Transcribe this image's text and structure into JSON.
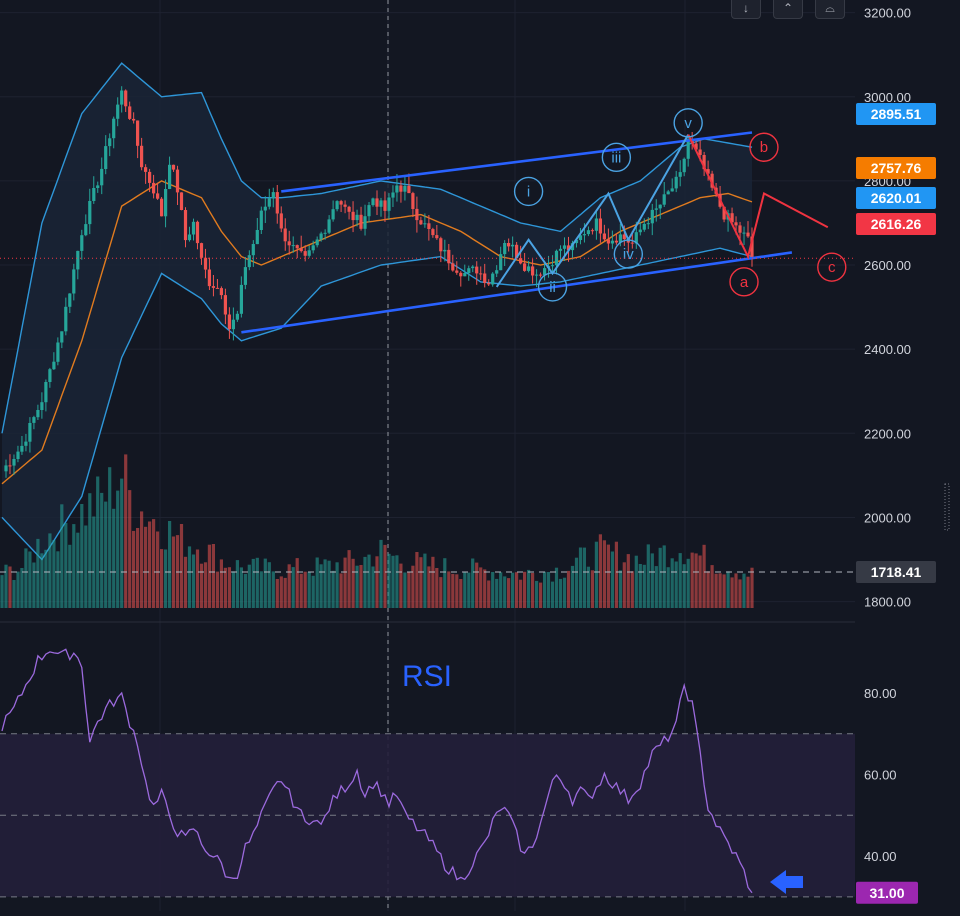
{
  "toolbar": {
    "buttons": [
      {
        "name": "scroll-down-button",
        "glyph": "↓"
      },
      {
        "name": "scroll-up-button",
        "glyph": "⌃"
      },
      {
        "name": "maximize-button",
        "glyph": "⌓"
      }
    ]
  },
  "colors": {
    "background": "#131722",
    "up_candle": "#26a69a",
    "down_candle": "#ef5350",
    "bollinger": "#2e96d8",
    "bollinger_fill": "#1a2536",
    "basis": "#e07b1f",
    "channel": "#2962ff",
    "wave_blue": "#4ba3e3",
    "wave_red": "#ef3340",
    "rsi_line": "#9c6ade",
    "rsi_band": "#241f3a",
    "rsi_label": "#2962ff",
    "grid": "#1e2230",
    "axis_text": "#d1d4dc"
  },
  "chart_data": [
    {
      "type": "candlestick",
      "panel": "price",
      "y_axis": {
        "ticks": [
          3200,
          3000,
          2800,
          2600,
          2400,
          2200,
          2000,
          1800
        ],
        "tick_labels": [
          "3200.00",
          "3000.00",
          "2800.00",
          "2600.00",
          "2400.00",
          "2200.00",
          "2000.00",
          "1800.00"
        ],
        "range": [
          1780,
          3230
        ]
      },
      "price_labels": [
        {
          "value": 2895.51,
          "text": "2895.51",
          "color": "#2196f3"
        },
        {
          "value": 2757.76,
          "text": "2757.76",
          "color": "#f57c00"
        },
        {
          "value": 2620.01,
          "text": "2620.01",
          "color": "#2196f3"
        },
        {
          "value": 2616.26,
          "text": "2616.26",
          "color": "#f23645"
        },
        {
          "value": 1718.41,
          "text": "1718.41",
          "color": "#363a45"
        }
      ],
      "close_keypoints": [
        [
          0,
          2110
        ],
        [
          5,
          2170
        ],
        [
          10,
          2280
        ],
        [
          15,
          2450
        ],
        [
          20,
          2680
        ],
        [
          25,
          2830
        ],
        [
          28,
          2950
        ],
        [
          30,
          3010
        ],
        [
          33,
          2930
        ],
        [
          35,
          2840
        ],
        [
          38,
          2780
        ],
        [
          40,
          2720
        ],
        [
          42,
          2850
        ],
        [
          44,
          2780
        ],
        [
          46,
          2660
        ],
        [
          48,
          2700
        ],
        [
          50,
          2610
        ],
        [
          52,
          2560
        ],
        [
          55,
          2540
        ],
        [
          57,
          2450
        ],
        [
          59,
          2480
        ],
        [
          61,
          2600
        ],
        [
          63,
          2650
        ],
        [
          65,
          2720
        ],
        [
          68,
          2780
        ],
        [
          70,
          2680
        ],
        [
          73,
          2640
        ],
        [
          76,
          2610
        ],
        [
          78,
          2640
        ],
        [
          81,
          2690
        ],
        [
          84,
          2760
        ],
        [
          87,
          2720
        ],
        [
          90,
          2700
        ],
        [
          93,
          2760
        ],
        [
          96,
          2730
        ],
        [
          99,
          2790
        ],
        [
          101,
          2780
        ],
        [
          104,
          2720
        ],
        [
          107,
          2680
        ],
        [
          110,
          2640
        ],
        [
          113,
          2600
        ],
        [
          116,
          2580
        ],
        [
          119,
          2590
        ],
        [
          122,
          2560
        ],
        [
          124,
          2600
        ],
        [
          126,
          2660
        ],
        [
          128,
          2640
        ],
        [
          131,
          2600
        ],
        [
          134,
          2580
        ],
        [
          137,
          2600
        ],
        [
          140,
          2640
        ],
        [
          143,
          2640
        ],
        [
          146,
          2680
        ],
        [
          149,
          2700
        ],
        [
          152,
          2660
        ],
        [
          155,
          2670
        ],
        [
          158,
          2650
        ],
        [
          161,
          2700
        ],
        [
          164,
          2730
        ],
        [
          167,
          2770
        ],
        [
          170,
          2810
        ],
        [
          172,
          2900
        ],
        [
          175,
          2850
        ],
        [
          178,
          2780
        ],
        [
          181,
          2720
        ],
        [
          184,
          2690
        ],
        [
          187,
          2660
        ],
        [
          188,
          2616
        ]
      ],
      "bollinger": {
        "upper": [
          [
            0,
            2200
          ],
          [
            10,
            2700
          ],
          [
            20,
            2960
          ],
          [
            30,
            3080
          ],
          [
            40,
            3000
          ],
          [
            50,
            3010
          ],
          [
            55,
            2900
          ],
          [
            60,
            2800
          ],
          [
            65,
            2760
          ],
          [
            70,
            2760
          ],
          [
            80,
            2770
          ],
          [
            95,
            2800
          ],
          [
            110,
            2780
          ],
          [
            120,
            2740
          ],
          [
            130,
            2700
          ],
          [
            140,
            2680
          ],
          [
            150,
            2760
          ],
          [
            160,
            2800
          ],
          [
            170,
            2880
          ],
          [
            176,
            2900
          ],
          [
            182,
            2890
          ],
          [
            188,
            2880
          ]
        ],
        "basis": [
          [
            0,
            2080
          ],
          [
            10,
            2160
          ],
          [
            20,
            2420
          ],
          [
            30,
            2740
          ],
          [
            40,
            2800
          ],
          [
            50,
            2760
          ],
          [
            55,
            2680
          ],
          [
            60,
            2620
          ],
          [
            65,
            2600
          ],
          [
            75,
            2640
          ],
          [
            90,
            2700
          ],
          [
            105,
            2720
          ],
          [
            115,
            2680
          ],
          [
            125,
            2620
          ],
          [
            135,
            2600
          ],
          [
            145,
            2620
          ],
          [
            155,
            2680
          ],
          [
            165,
            2720
          ],
          [
            175,
            2760
          ],
          [
            182,
            2770
          ],
          [
            188,
            2750
          ]
        ],
        "lower": [
          [
            0,
            2000
          ],
          [
            10,
            1900
          ],
          [
            20,
            2050
          ],
          [
            30,
            2380
          ],
          [
            40,
            2580
          ],
          [
            50,
            2520
          ],
          [
            55,
            2460
          ],
          [
            60,
            2420
          ],
          [
            70,
            2450
          ],
          [
            80,
            2550
          ],
          [
            95,
            2600
          ],
          [
            110,
            2620
          ],
          [
            120,
            2560
          ],
          [
            130,
            2550
          ],
          [
            140,
            2560
          ],
          [
            150,
            2580
          ],
          [
            160,
            2600
          ],
          [
            170,
            2620
          ],
          [
            180,
            2640
          ],
          [
            188,
            2620
          ]
        ]
      },
      "channel": {
        "upper": [
          [
            70,
            2775
          ],
          [
            188,
            2915
          ]
        ],
        "lower": [
          [
            60,
            2440
          ],
          [
            198,
            2630
          ]
        ]
      },
      "elliott_waves": {
        "impulse": [
          {
            "label": "i",
            "x": 132,
            "value": 2775
          },
          {
            "label": "ii",
            "x": 138,
            "value": 2548
          },
          {
            "label": "iii",
            "x": 154,
            "value": 2856
          },
          {
            "label": "iv",
            "x": 157,
            "value": 2626
          },
          {
            "label": "v",
            "x": 172,
            "value": 2938
          }
        ],
        "impulse_path": [
          [
            124,
            2548
          ],
          [
            132,
            2660
          ],
          [
            138,
            2580
          ],
          [
            152,
            2770
          ],
          [
            157,
            2660
          ],
          [
            172,
            2910
          ]
        ],
        "corrective": [
          {
            "label": "a",
            "x": 186,
            "value": 2560
          },
          {
            "label": "b",
            "x": 191,
            "value": 2880
          },
          {
            "label": "c",
            "x": 208,
            "value": 2595
          }
        ],
        "corrective_path": [
          [
            172,
            2910
          ],
          [
            187,
            2620
          ],
          [
            191,
            2770
          ],
          [
            207,
            2690
          ]
        ]
      }
    },
    {
      "type": "bar",
      "panel": "volume",
      "note": "relative volume level 0-1",
      "levels": [
        [
          0,
          0.25
        ],
        [
          5,
          0.3
        ],
        [
          10,
          0.5
        ],
        [
          15,
          0.6
        ],
        [
          20,
          0.7
        ],
        [
          25,
          0.8
        ],
        [
          28,
          0.9
        ],
        [
          30,
          1.0
        ],
        [
          33,
          0.75
        ],
        [
          36,
          0.7
        ],
        [
          40,
          0.6
        ],
        [
          45,
          0.5
        ],
        [
          50,
          0.45
        ],
        [
          55,
          0.35
        ],
        [
          60,
          0.3
        ],
        [
          70,
          0.28
        ],
        [
          80,
          0.3
        ],
        [
          90,
          0.35
        ],
        [
          95,
          0.42
        ],
        [
          100,
          0.35
        ],
        [
          110,
          0.3
        ],
        [
          120,
          0.28
        ],
        [
          130,
          0.25
        ],
        [
          140,
          0.28
        ],
        [
          150,
          0.42
        ],
        [
          160,
          0.35
        ],
        [
          170,
          0.45
        ],
        [
          175,
          0.38
        ],
        [
          182,
          0.3
        ],
        [
          188,
          0.25
        ]
      ]
    },
    {
      "type": "line",
      "panel": "rsi",
      "label": "RSI",
      "y_axis": {
        "ticks": [
          80,
          60,
          40
        ],
        "tick_labels": [
          "80.00",
          "60.00",
          "40.00"
        ],
        "range": [
          28,
          93
        ]
      },
      "bands": {
        "upper": 70,
        "middle": 50,
        "lower": 30
      },
      "current": {
        "value": 31.0,
        "text": "31.00"
      },
      "values": [
        [
          0,
          72
        ],
        [
          3,
          76
        ],
        [
          6,
          82
        ],
        [
          9,
          88
        ],
        [
          12,
          91
        ],
        [
          15,
          89
        ],
        [
          18,
          90
        ],
        [
          20,
          87
        ],
        [
          22,
          68
        ],
        [
          24,
          73
        ],
        [
          26,
          76
        ],
        [
          28,
          78
        ],
        [
          30,
          79
        ],
        [
          32,
          73
        ],
        [
          34,
          68
        ],
        [
          36,
          58
        ],
        [
          38,
          52
        ],
        [
          40,
          55
        ],
        [
          42,
          50
        ],
        [
          44,
          46
        ],
        [
          46,
          44
        ],
        [
          48,
          47
        ],
        [
          50,
          43
        ],
        [
          53,
          40
        ],
        [
          55,
          38
        ],
        [
          57,
          34
        ],
        [
          59,
          36
        ],
        [
          61,
          42
        ],
        [
          63,
          45
        ],
        [
          66,
          52
        ],
        [
          68,
          56
        ],
        [
          70,
          59
        ],
        [
          72,
          55
        ],
        [
          74,
          52
        ],
        [
          76,
          48
        ],
        [
          78,
          50
        ],
        [
          80,
          47
        ],
        [
          82,
          52
        ],
        [
          84,
          55
        ],
        [
          87,
          58
        ],
        [
          89,
          61
        ],
        [
          91,
          55
        ],
        [
          93,
          58
        ],
        [
          95,
          56
        ],
        [
          97,
          53
        ],
        [
          99,
          55
        ],
        [
          101,
          50
        ],
        [
          103,
          48
        ],
        [
          105,
          46
        ],
        [
          107,
          44
        ],
        [
          109,
          41
        ],
        [
          111,
          38
        ],
        [
          113,
          36
        ],
        [
          115,
          34
        ],
        [
          117,
          37
        ],
        [
          119,
          40
        ],
        [
          121,
          43
        ],
        [
          123,
          48
        ],
        [
          125,
          52
        ],
        [
          127,
          50
        ],
        [
          129,
          45
        ],
        [
          131,
          40
        ],
        [
          133,
          43
        ],
        [
          135,
          48
        ],
        [
          137,
          55
        ],
        [
          139,
          60
        ],
        [
          141,
          58
        ],
        [
          143,
          54
        ],
        [
          145,
          56
        ],
        [
          147,
          54
        ],
        [
          149,
          57
        ],
        [
          151,
          60
        ],
        [
          153,
          58
        ],
        [
          155,
          56
        ],
        [
          157,
          54
        ],
        [
          160,
          58
        ],
        [
          163,
          65
        ],
        [
          166,
          68
        ],
        [
          169,
          72
        ],
        [
          171,
          82
        ],
        [
          173,
          77
        ],
        [
          175,
          65
        ],
        [
          177,
          52
        ],
        [
          180,
          46
        ],
        [
          182,
          43
        ],
        [
          184,
          40
        ],
        [
          186,
          36
        ],
        [
          188,
          31
        ]
      ]
    }
  ]
}
